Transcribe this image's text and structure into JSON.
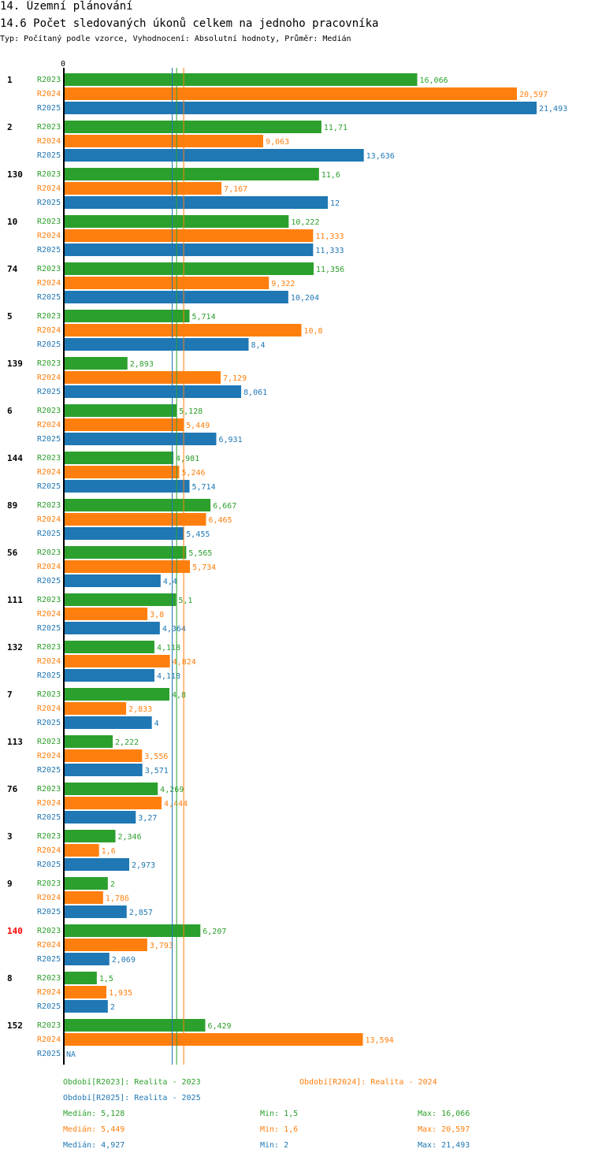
{
  "header": {
    "section_title": "14. Územní plánování",
    "chart_title": "14.6 Počet sledovaných úkonů celkem na jednoho pracovníka",
    "subtitle": "Typ: Počítaný podle vzorce, Vyhodnocení: Absolutní hodnoty, Průměr: Medián"
  },
  "colors": {
    "R2023": "#2ca02c",
    "R2024": "#ff7f0e",
    "R2025": "#1f77b4",
    "highlight": "#ff0000"
  },
  "chart_data": {
    "type": "bar",
    "orientation": "horizontal",
    "title": "14.6 Počet sledovaných úkonů celkem na jednoho pracovníka",
    "axis_zero_label": "0",
    "xlim": [
      0,
      21.493
    ],
    "series_names": [
      "R2023",
      "R2024",
      "R2025"
    ],
    "groups": [
      {
        "id": "1",
        "highlight": false,
        "values": [
          16.066,
          20.597,
          21.493
        ],
        "labels": [
          "16,066",
          "20,597",
          "21,493"
        ]
      },
      {
        "id": "2",
        "highlight": false,
        "values": [
          11.71,
          9.063,
          13.636
        ],
        "labels": [
          "11,71",
          "9,063",
          "13,636"
        ]
      },
      {
        "id": "130",
        "highlight": false,
        "values": [
          11.6,
          7.167,
          12
        ],
        "labels": [
          "11,6",
          "7,167",
          "12"
        ]
      },
      {
        "id": "10",
        "highlight": false,
        "values": [
          10.222,
          11.333,
          11.333
        ],
        "labels": [
          "10,222",
          "11,333",
          "11,333"
        ]
      },
      {
        "id": "74",
        "highlight": false,
        "values": [
          11.356,
          9.322,
          10.204
        ],
        "labels": [
          "11,356",
          "9,322",
          "10,204"
        ]
      },
      {
        "id": "5",
        "highlight": false,
        "values": [
          5.714,
          10.8,
          8.4
        ],
        "labels": [
          "5,714",
          "10,8",
          "8,4"
        ]
      },
      {
        "id": "139",
        "highlight": false,
        "values": [
          2.893,
          7.129,
          8.061
        ],
        "labels": [
          "2,893",
          "7,129",
          "8,061"
        ]
      },
      {
        "id": "6",
        "highlight": false,
        "values": [
          5.128,
          5.449,
          6.931
        ],
        "labels": [
          "5,128",
          "5,449",
          "6,931"
        ]
      },
      {
        "id": "144",
        "highlight": false,
        "values": [
          4.981,
          5.246,
          5.714
        ],
        "labels": [
          "4,981",
          "5,246",
          "5,714"
        ]
      },
      {
        "id": "89",
        "highlight": false,
        "values": [
          6.667,
          6.465,
          5.455
        ],
        "labels": [
          "6,667",
          "6,465",
          "5,455"
        ]
      },
      {
        "id": "56",
        "highlight": false,
        "values": [
          5.565,
          5.734,
          4.4
        ],
        "labels": [
          "5,565",
          "5,734",
          "4,4"
        ]
      },
      {
        "id": "111",
        "highlight": false,
        "values": [
          5.1,
          3.8,
          4.364
        ],
        "labels": [
          "5,1",
          "3,8",
          "4,364"
        ]
      },
      {
        "id": "132",
        "highlight": false,
        "values": [
          4.118,
          4.824,
          4.118
        ],
        "labels": [
          "4,118",
          "4,824",
          "4,118"
        ]
      },
      {
        "id": "7",
        "highlight": false,
        "values": [
          4.8,
          2.833,
          4
        ],
        "labels": [
          "4,8",
          "2,833",
          "4"
        ]
      },
      {
        "id": "113",
        "highlight": false,
        "values": [
          2.222,
          3.556,
          3.571
        ],
        "labels": [
          "2,222",
          "3,556",
          "3,571"
        ]
      },
      {
        "id": "76",
        "highlight": false,
        "values": [
          4.269,
          4.444,
          3.27
        ],
        "labels": [
          "4,269",
          "4,444",
          "3,27"
        ]
      },
      {
        "id": "3",
        "highlight": false,
        "values": [
          2.346,
          1.6,
          2.973
        ],
        "labels": [
          "2,346",
          "1,6",
          "2,973"
        ]
      },
      {
        "id": "9",
        "highlight": false,
        "values": [
          2,
          1.786,
          2.857
        ],
        "labels": [
          "2",
          "1,786",
          "2,857"
        ]
      },
      {
        "id": "140",
        "highlight": true,
        "values": [
          6.207,
          3.793,
          2.069
        ],
        "labels": [
          "6,207",
          "3,793",
          "2,069"
        ]
      },
      {
        "id": "8",
        "highlight": false,
        "values": [
          1.5,
          1.935,
          2
        ],
        "labels": [
          "1,5",
          "1,935",
          "2"
        ]
      },
      {
        "id": "152",
        "highlight": false,
        "values": [
          6.429,
          13.594,
          null
        ],
        "labels": [
          "6,429",
          "13,594",
          "NA"
        ]
      }
    ],
    "medians": [
      5.128,
      5.449,
      4.927
    ]
  },
  "legend": {
    "period_2023": "Období[R2023]: Realita - 2023",
    "period_2024": "Období[R2024]: Realita - 2024",
    "period_2025": "Období[R2025]: Realita - 2025",
    "stats": [
      {
        "median": "Medián: 5,128",
        "min": "Min: 1,5",
        "max": "Max: 16,066"
      },
      {
        "median": "Medián: 5,449",
        "min": "Min: 1,6",
        "max": "Max: 20,597"
      },
      {
        "median": "Medián: 4,927",
        "min": "Min: 2",
        "max": "Max: 21,493"
      }
    ]
  }
}
